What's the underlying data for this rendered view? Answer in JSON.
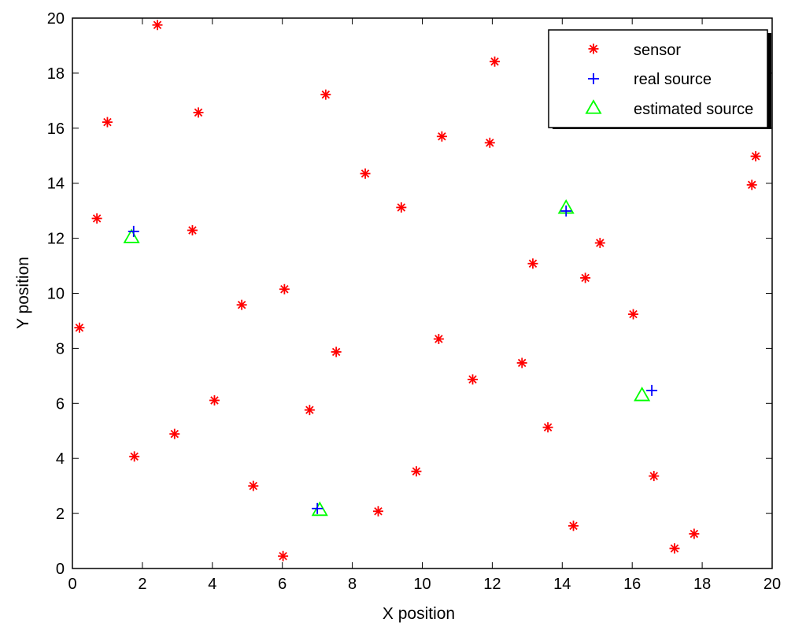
{
  "chart_data": {
    "type": "scatter",
    "xlabel": "X position",
    "ylabel": "Y position",
    "xlim": [
      0,
      20
    ],
    "ylim": [
      0,
      20
    ],
    "xticks": [
      "0",
      "2",
      "4",
      "6",
      "8",
      "10",
      "12",
      "14",
      "16",
      "18",
      "20"
    ],
    "yticks": [
      "0",
      "2",
      "4",
      "6",
      "8",
      "10",
      "12",
      "14",
      "16",
      "18",
      "20"
    ],
    "grid": false,
    "legend_position": "top-right",
    "series": [
      {
        "name": "sensor",
        "marker": "asterisk",
        "color": "#ff0000",
        "points": [
          [
            2.43,
            19.75
          ],
          [
            12.07,
            18.42
          ],
          [
            7.24,
            17.22
          ],
          [
            1.0,
            16.22
          ],
          [
            3.6,
            16.57
          ],
          [
            10.56,
            15.7
          ],
          [
            11.93,
            15.47
          ],
          [
            19.53,
            14.98
          ],
          [
            19.42,
            13.94
          ],
          [
            8.37,
            14.35
          ],
          [
            9.4,
            13.12
          ],
          [
            0.7,
            12.72
          ],
          [
            3.43,
            12.29
          ],
          [
            15.08,
            11.83
          ],
          [
            13.16,
            11.08
          ],
          [
            14.66,
            10.56
          ],
          [
            6.06,
            10.15
          ],
          [
            4.84,
            9.58
          ],
          [
            0.2,
            8.75
          ],
          [
            16.03,
            9.24
          ],
          [
            10.47,
            8.34
          ],
          [
            7.54,
            7.87
          ],
          [
            12.85,
            7.47
          ],
          [
            11.44,
            6.87
          ],
          [
            4.06,
            6.11
          ],
          [
            6.78,
            5.76
          ],
          [
            13.59,
            5.13
          ],
          [
            2.92,
            4.89
          ],
          [
            1.77,
            4.07
          ],
          [
            9.83,
            3.53
          ],
          [
            16.62,
            3.36
          ],
          [
            5.17,
            3.0
          ],
          [
            8.74,
            2.08
          ],
          [
            14.32,
            1.55
          ],
          [
            17.77,
            1.26
          ],
          [
            17.21,
            0.73
          ],
          [
            6.02,
            0.45
          ]
        ]
      },
      {
        "name": "real source",
        "marker": "plus",
        "color": "#0000ff",
        "points": [
          [
            1.75,
            12.25
          ],
          [
            14.11,
            12.99
          ],
          [
            16.56,
            6.47
          ],
          [
            7.0,
            2.18
          ]
        ]
      },
      {
        "name": "estimated source",
        "marker": "triangle",
        "color": "#00ff00",
        "points": [
          [
            1.69,
            12.04
          ],
          [
            14.11,
            13.11
          ],
          [
            16.28,
            6.3
          ],
          [
            7.07,
            2.13
          ]
        ]
      }
    ]
  }
}
